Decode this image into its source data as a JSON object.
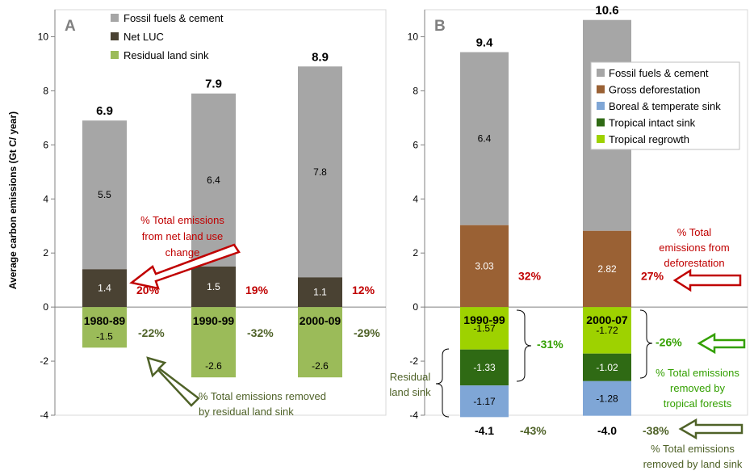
{
  "y_axis_label": "Average carbon emissions (Gt C/ year)",
  "colors": {
    "fossil": "#a6a6a6",
    "netluc": "#4a4233",
    "residual": "#9bbb59",
    "gross_def": "#9a6134",
    "boreal": "#7fa6d6",
    "trop_intact": "#2f6a14",
    "trop_regrowth": "#9ed200",
    "red": "#c00000",
    "green_text": "#4f6228",
    "bright_green": "#33a000"
  },
  "chart_data": [
    {
      "type": "bar",
      "stacked": true,
      "panel_label": "A",
      "ylim": [
        -4,
        11
      ],
      "yticks": [
        -4,
        -2,
        0,
        2,
        4,
        6,
        8,
        10
      ],
      "categories": [
        "1980-89",
        "1990-99",
        "2000-09"
      ],
      "series": [
        {
          "name": "Fossil fuels & cement",
          "values": [
            5.5,
            6.4,
            7.8
          ]
        },
        {
          "name": "Net LUC",
          "values": [
            1.4,
            1.5,
            1.1
          ]
        },
        {
          "name": "Residual land sink",
          "values": [
            -1.5,
            -2.6,
            -2.6
          ]
        }
      ],
      "totals": [
        "6.9",
        "7.9",
        "8.9"
      ],
      "pct_luc": [
        "20%",
        "19%",
        "12%"
      ],
      "pct_sink": [
        "-22%",
        "-32%",
        "-29%"
      ],
      "annotations": {
        "luc_line1": "% Total emissions",
        "luc_line2": "from net land use",
        "luc_line3": "change",
        "sink_line1": "% Total emissions removed",
        "sink_line2": "by residual land sink"
      },
      "legend": "top-left"
    },
    {
      "type": "bar",
      "stacked": true,
      "panel_label": "B",
      "ylim": [
        -4,
        11
      ],
      "yticks": [
        -4,
        -2,
        0,
        2,
        4,
        6,
        8,
        10
      ],
      "categories": [
        "1990-99",
        "2000-07"
      ],
      "series": [
        {
          "name": "Fossil fuels & cement",
          "values": [
            6.4,
            7.8
          ]
        },
        {
          "name": "Gross deforestation",
          "values": [
            3.03,
            2.82
          ]
        },
        {
          "name": "Boreal & temperate sink",
          "values": [
            -1.17,
            -1.28
          ]
        },
        {
          "name": "Tropical intact sink",
          "values": [
            -1.33,
            -1.02
          ]
        },
        {
          "name": "Tropical regrowth",
          "values": [
            -1.57,
            -1.72
          ]
        }
      ],
      "totals_top": [
        "9.4",
        "10.6"
      ],
      "totals_bottom": [
        "-4.1",
        "-4.0"
      ],
      "pct_def": [
        "32%",
        "27%"
      ],
      "pct_trop": [
        "-31%",
        "-26%"
      ],
      "pct_land": [
        "-43%",
        "-38%"
      ],
      "annotations": {
        "def_line1": "% Total",
        "def_line2": "emissions from",
        "def_line3": "deforestation",
        "trop_line1": "% Total emissions",
        "trop_line2": "removed by",
        "trop_line3": "tropical forests",
        "land_line1": "% Total emissions",
        "land_line2": "removed by land sink",
        "residual_line1": "Residual",
        "residual_line2": "land sink"
      },
      "legend": "top-right"
    }
  ]
}
